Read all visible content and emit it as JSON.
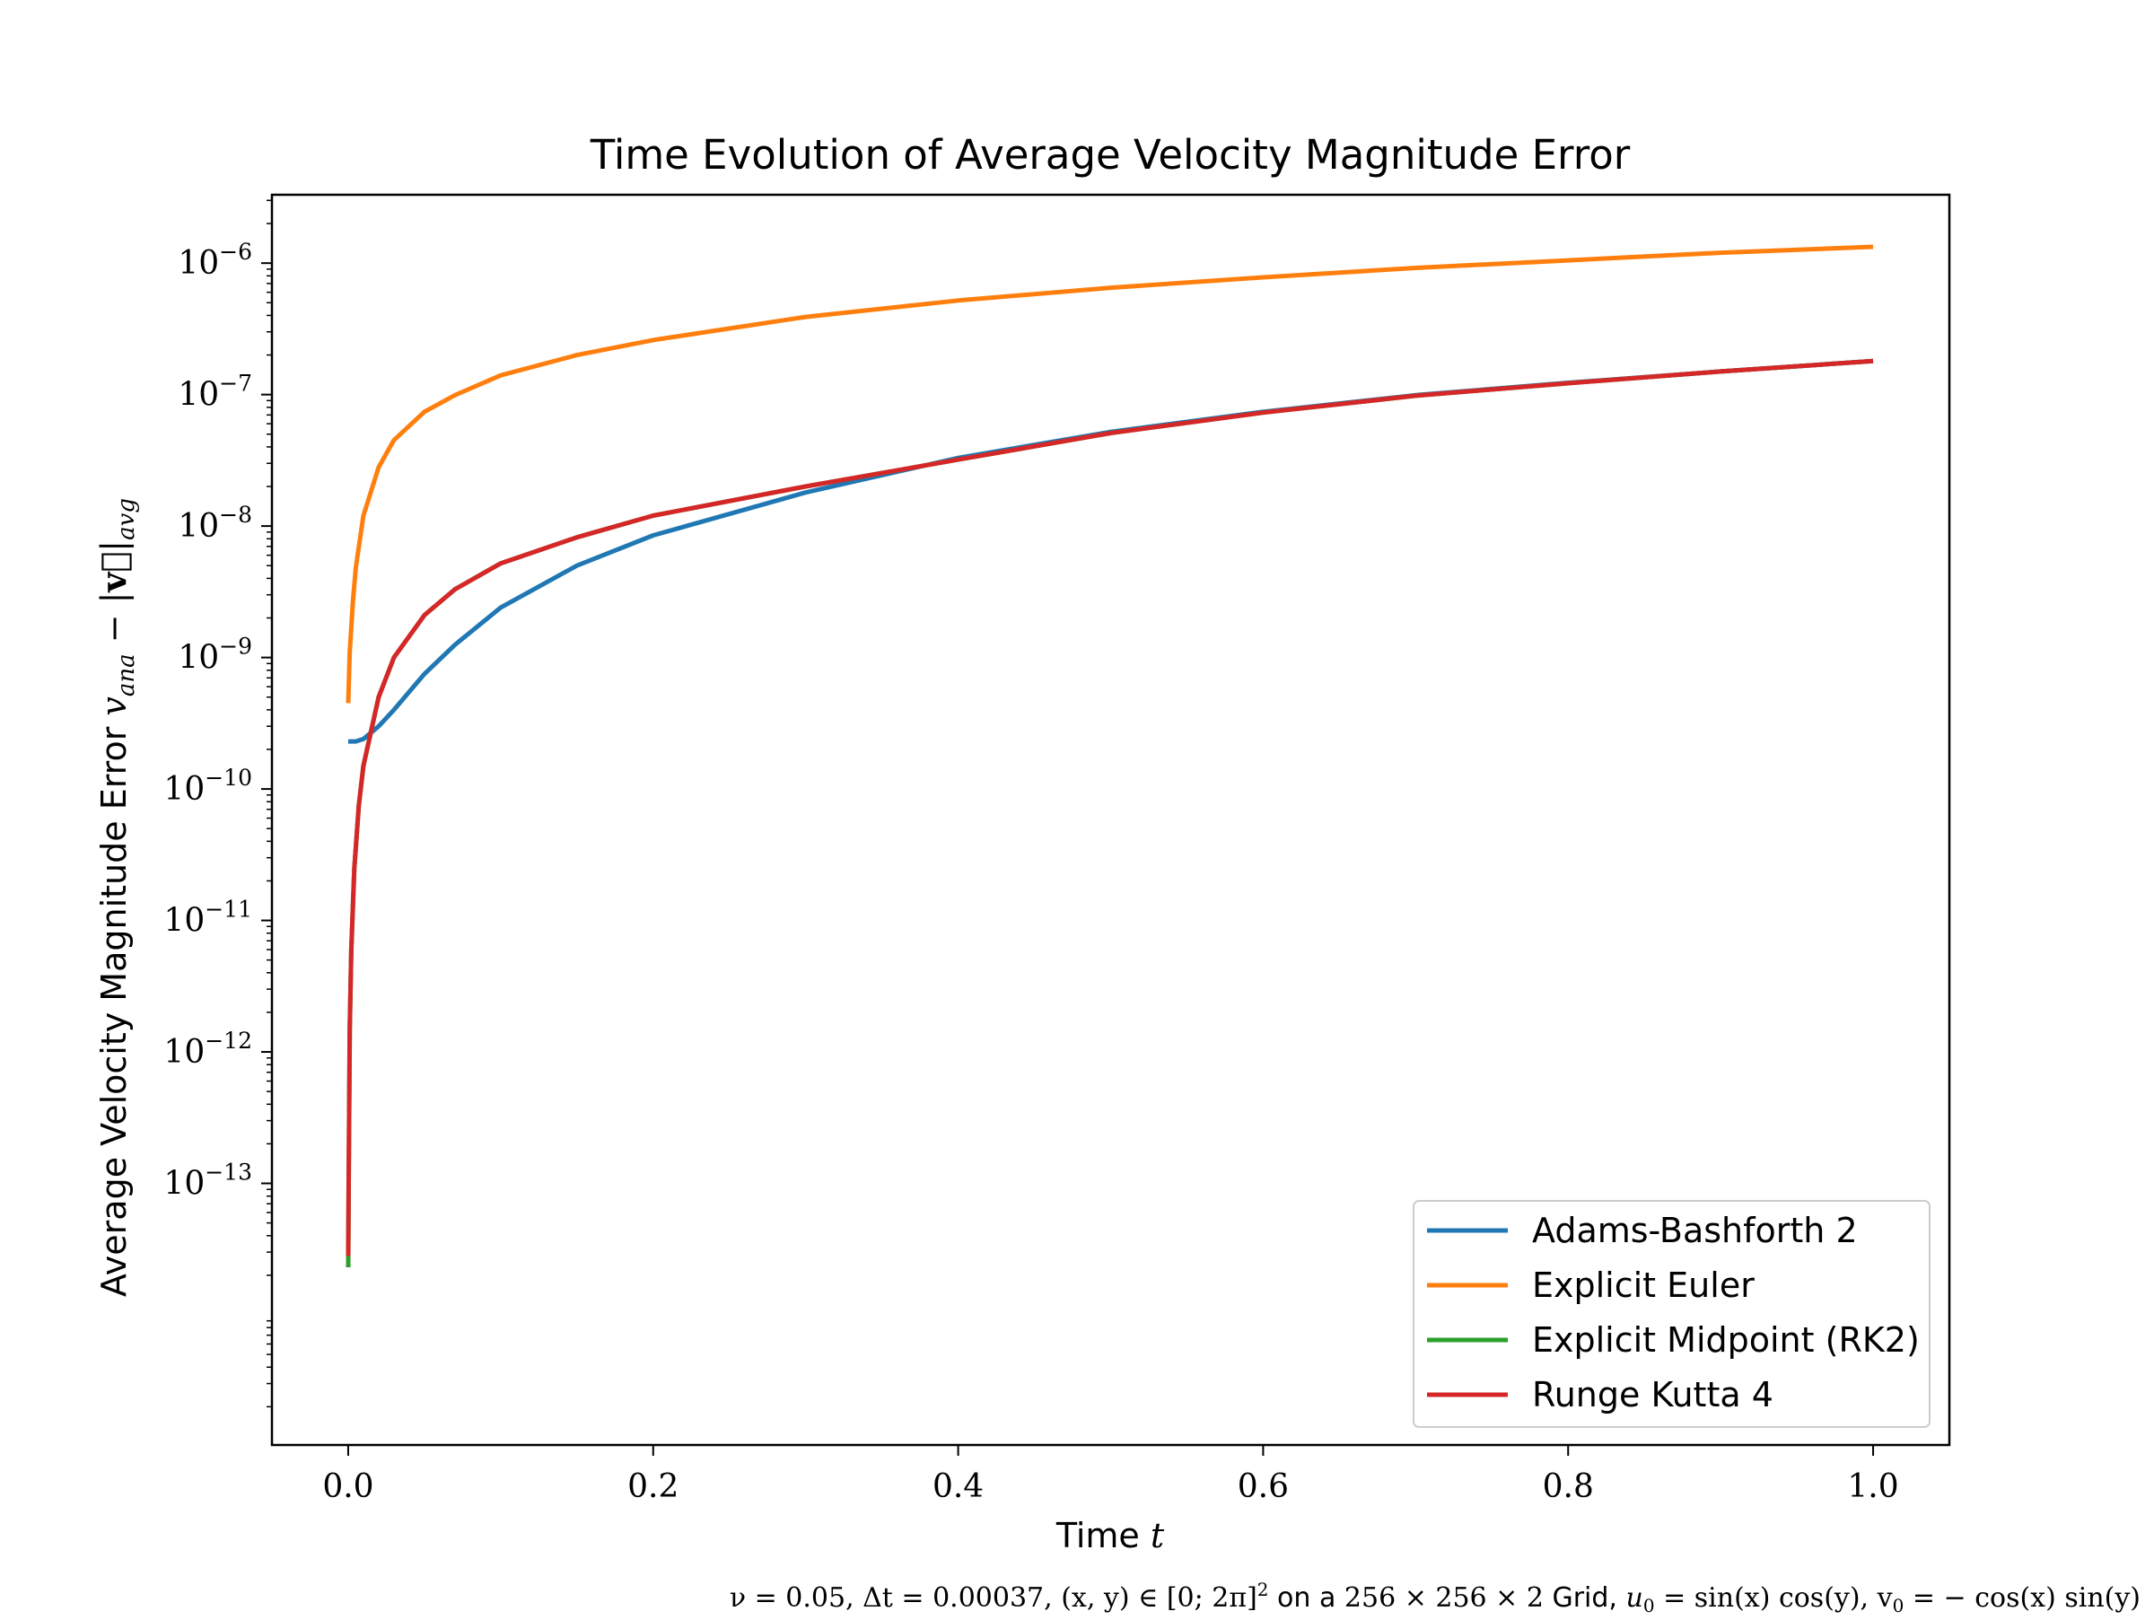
{
  "chart_data": {
    "type": "line",
    "title": "Time Evolution of Average Velocity Magnitude Error",
    "xlabel": {
      "text": "Time ",
      "var": "t"
    },
    "ylabel": {
      "text": "Average Velocity Magnitude Error ",
      "math": "v_ana − |v⃗|_avg",
      "parts": {
        "v": "v",
        "ana_sub": "ana",
        "minus": " − |",
        "vec": "v⃗",
        "bar": "|",
        "avg_sub": "avg"
      }
    },
    "caption": {
      "part1": "ν = 0.05, Δt = 0.00037, (x, y) ∈ [0; 2π]",
      "part1_sup": "2",
      "part2": " on a ",
      "part3": "256 × 256 × 2",
      "part4": " Grid, ",
      "part5": "u",
      "part5_sub": "0",
      "part6": " = sin(x) cos(y), v",
      "part6_sub": "0",
      "part7": " = − cos(x) sin(y)"
    },
    "xlim": [
      -0.05,
      1.05
    ],
    "ylim": [
      -14.99,
      -5.48
    ],
    "yscale": "log",
    "xticks": [
      {
        "value": 0.0,
        "label": "0.0"
      },
      {
        "value": 0.2,
        "label": "0.2"
      },
      {
        "value": 0.4,
        "label": "0.4"
      },
      {
        "value": 0.6,
        "label": "0.6"
      },
      {
        "value": 0.8,
        "label": "0.8"
      },
      {
        "value": 1.0,
        "label": "1.0"
      }
    ],
    "yticks": [
      {
        "exp": -6,
        "label": "10",
        "sup": "−6"
      },
      {
        "exp": -7,
        "label": "10",
        "sup": "−7"
      },
      {
        "exp": -8,
        "label": "10",
        "sup": "−8"
      },
      {
        "exp": -9,
        "label": "10",
        "sup": "−9"
      },
      {
        "exp": -10,
        "label": "10",
        "sup": "−10"
      },
      {
        "exp": -11,
        "label": "10",
        "sup": "−11"
      },
      {
        "exp": -12,
        "label": "10",
        "sup": "−12"
      },
      {
        "exp": -13,
        "label": "10",
        "sup": "−13"
      }
    ],
    "grid": false,
    "legend_position": "lower-right",
    "series": [
      {
        "name": "Adams-Bashforth 2",
        "color": "#1f77b4",
        "x": [
          0.0,
          0.005,
          0.01,
          0.02,
          0.03,
          0.05,
          0.07,
          0.1,
          0.15,
          0.2,
          0.3,
          0.4,
          0.5,
          0.6,
          0.7,
          0.8,
          0.9,
          1.0
        ],
        "y": [
          2.3e-10,
          2.3e-10,
          2.4e-10,
          3e-10,
          4e-10,
          7.5e-10,
          1.25e-09,
          2.4e-09,
          5e-09,
          8.5e-09,
          1.8e-08,
          3.3e-08,
          5.2e-08,
          7.4e-08,
          9.9e-08,
          1.23e-07,
          1.5e-07,
          1.8e-07
        ]
      },
      {
        "name": "Explicit Euler",
        "color": "#ff7f0e",
        "x": [
          0.0,
          0.001,
          0.003,
          0.005,
          0.01,
          0.02,
          0.03,
          0.05,
          0.07,
          0.1,
          0.15,
          0.2,
          0.3,
          0.4,
          0.5,
          0.6,
          0.7,
          0.8,
          0.9,
          1.0
        ],
        "y": [
          4.5e-10,
          1.1e-09,
          2.6e-09,
          4.8e-09,
          1.2e-08,
          2.8e-08,
          4.5e-08,
          7.4e-08,
          9.9e-08,
          1.4e-07,
          2e-07,
          2.6e-07,
          3.9e-07,
          5.2e-07,
          6.5e-07,
          7.8e-07,
          9.2e-07,
          1.05e-06,
          1.2e-06,
          1.33e-06
        ]
      },
      {
        "name": "Explicit Midpoint (RK2)",
        "color": "#2ca02c",
        "x": [
          0.0,
          0.0003,
          0.0005,
          0.001,
          0.002,
          0.004,
          0.007,
          0.01,
          0.02,
          0.03,
          0.05,
          0.07,
          0.1,
          0.15,
          0.2,
          0.3,
          0.4,
          0.5,
          0.6,
          0.7,
          0.8,
          0.9,
          1.0
        ],
        "y": [
          2.3e-14,
          1e-13,
          2e-13,
          1.5e-12,
          6e-12,
          2.5e-11,
          7.5e-11,
          1.5e-10,
          5e-10,
          1e-09,
          2.1e-09,
          3.3e-09,
          5.2e-09,
          8.2e-09,
          1.2e-08,
          2e-08,
          3.2e-08,
          5.1e-08,
          7.3e-08,
          9.8e-08,
          1.22e-07,
          1.5e-07,
          1.8e-07
        ]
      },
      {
        "name": "Runge Kutta 4",
        "color": "#d62728",
        "x": [
          0.0,
          0.0003,
          0.0005,
          0.001,
          0.002,
          0.004,
          0.007,
          0.01,
          0.02,
          0.03,
          0.05,
          0.07,
          0.1,
          0.15,
          0.2,
          0.3,
          0.4,
          0.5,
          0.6,
          0.7,
          0.8,
          0.9,
          1.0
        ],
        "y": [
          2.8e-14,
          1e-13,
          2e-13,
          1.5e-12,
          6e-12,
          2.5e-11,
          7.5e-11,
          1.5e-10,
          5e-10,
          1e-09,
          2.1e-09,
          3.3e-09,
          5.2e-09,
          8.2e-09,
          1.2e-08,
          2e-08,
          3.2e-08,
          5.1e-08,
          7.3e-08,
          9.8e-08,
          1.22e-07,
          1.5e-07,
          1.8e-07
        ]
      }
    ]
  }
}
